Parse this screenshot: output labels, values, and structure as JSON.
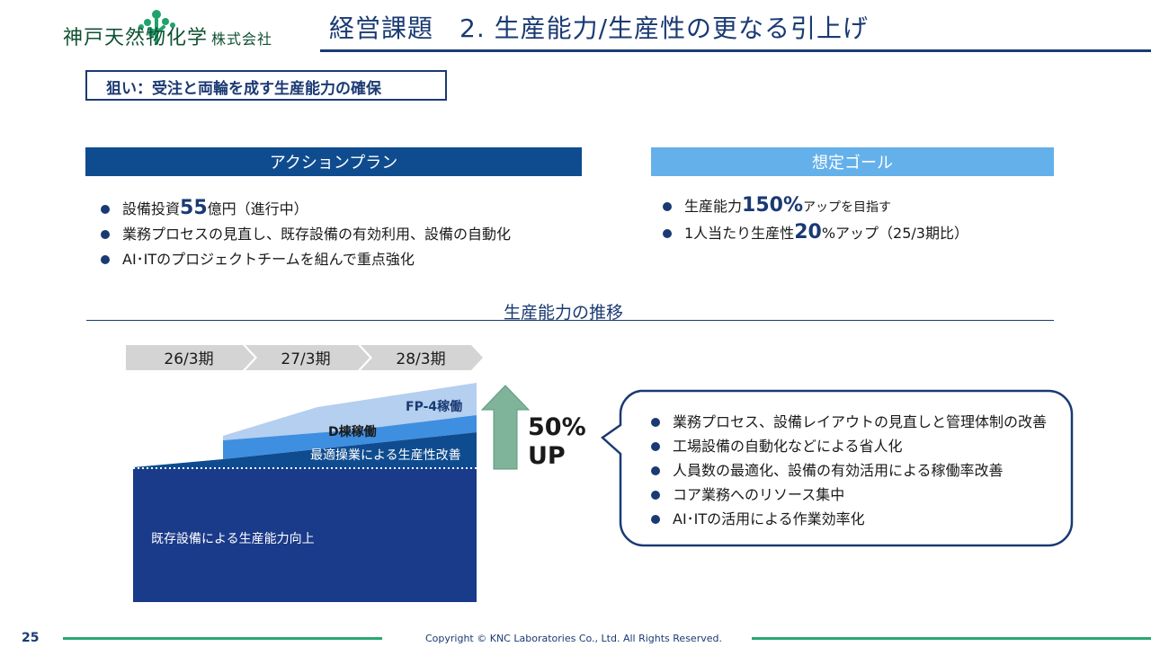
{
  "header": {
    "company_name": "神戸天然物化学",
    "company_suffix": "株式会社",
    "title": "経営課題　2.  生産能力/生産性の更なる引上げ"
  },
  "aim": "狙い：受注と両輪を成す生産能力の確保",
  "action_plan": {
    "title": "アクションプラン",
    "items": [
      {
        "pre": "設備投資",
        "big": "55",
        "post": "億円（進行中）"
      },
      {
        "pre": "業務プロセスの見直し、既存設備の有効利用、設備の自動化"
      },
      {
        "pre": "AI･ITのプロジェクトチームを組んで重点強化"
      }
    ]
  },
  "goal": {
    "title": "想定ゴール",
    "items": [
      {
        "pre": "生産能力",
        "big": "150%",
        "post": "アップを目指す"
      },
      {
        "pre": "1人当たり生産性",
        "big": "20",
        "post": "%アップ（25/3期比）"
      }
    ]
  },
  "trend": {
    "title": "生産能力の推移",
    "periods": [
      "26/3期",
      "27/3期",
      "28/3期"
    ],
    "layers": {
      "fp4": "FP-4稼働",
      "d": "D棟稼働",
      "opt": "最適操業による生産性改善",
      "base": "既存設備による生産能力向上"
    },
    "increase_value": "50%",
    "increase_label": "UP",
    "callout_items": [
      "業務プロセス、設備レイアウトの見直しと管理体制の改善",
      "工場設備の自動化などによる省人化",
      "人員数の最適化、設備の有効活用による稼働率改善",
      "コア業務へのリソース集中",
      "AI･ITの活用による作業効率化"
    ]
  },
  "footer": {
    "page": "25",
    "copyright": "Copyright © KNC Laboratories Co., Ltd. All Rights Reserved."
  },
  "colors": {
    "navy": "#1a3a73",
    "dark_blue": "#0f4c8f",
    "light_blue": "#64b0ea",
    "pale_blue": "#b4cfef",
    "mid_blue": "#3f8fe0",
    "green": "#2aa773",
    "arrow_green": "#7fb39a"
  }
}
